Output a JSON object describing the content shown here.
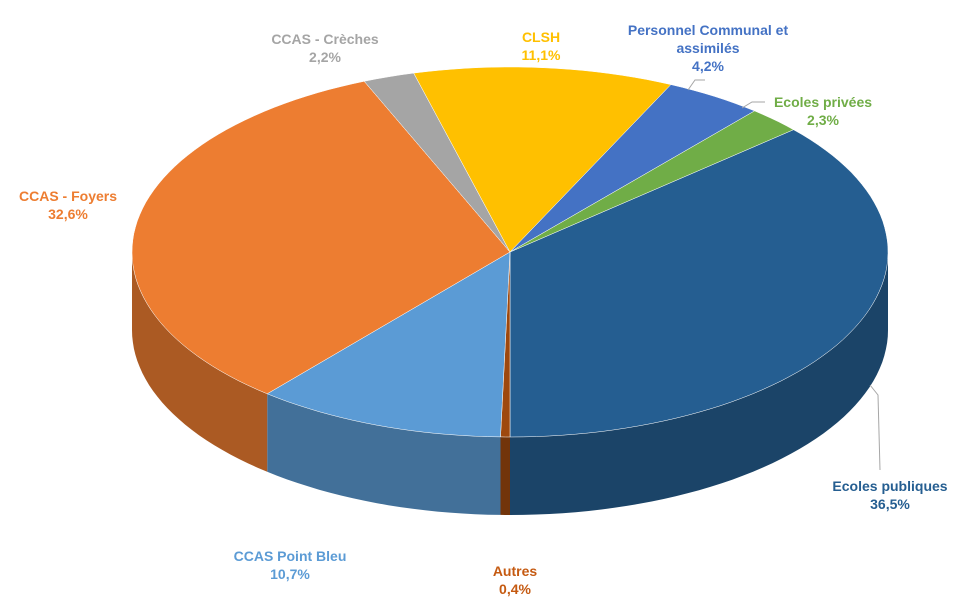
{
  "chart_data": {
    "type": "pie",
    "categories": [
      "Ecoles publiques",
      "Autres",
      "CCAS Point Bleu",
      "CCAS - Foyers",
      "CCAS - Crèches",
      "CLSH",
      "Personnel Communal et assimilés",
      "Ecoles privées"
    ],
    "values": [
      36.5,
      0.4,
      10.7,
      32.6,
      2.2,
      11.1,
      4.2,
      2.3
    ],
    "value_labels": [
      "36,5%",
      "0,4%",
      "10,7%",
      "32,6%",
      "2,2%",
      "11,1%",
      "4,2%",
      "2,3%"
    ],
    "colors": [
      "#255e91",
      "#9e480e",
      "#5b9bd5",
      "#ed7d31",
      "#a5a5a5",
      "#ffc000",
      "#4472c4",
      "#70ad47"
    ]
  }
}
